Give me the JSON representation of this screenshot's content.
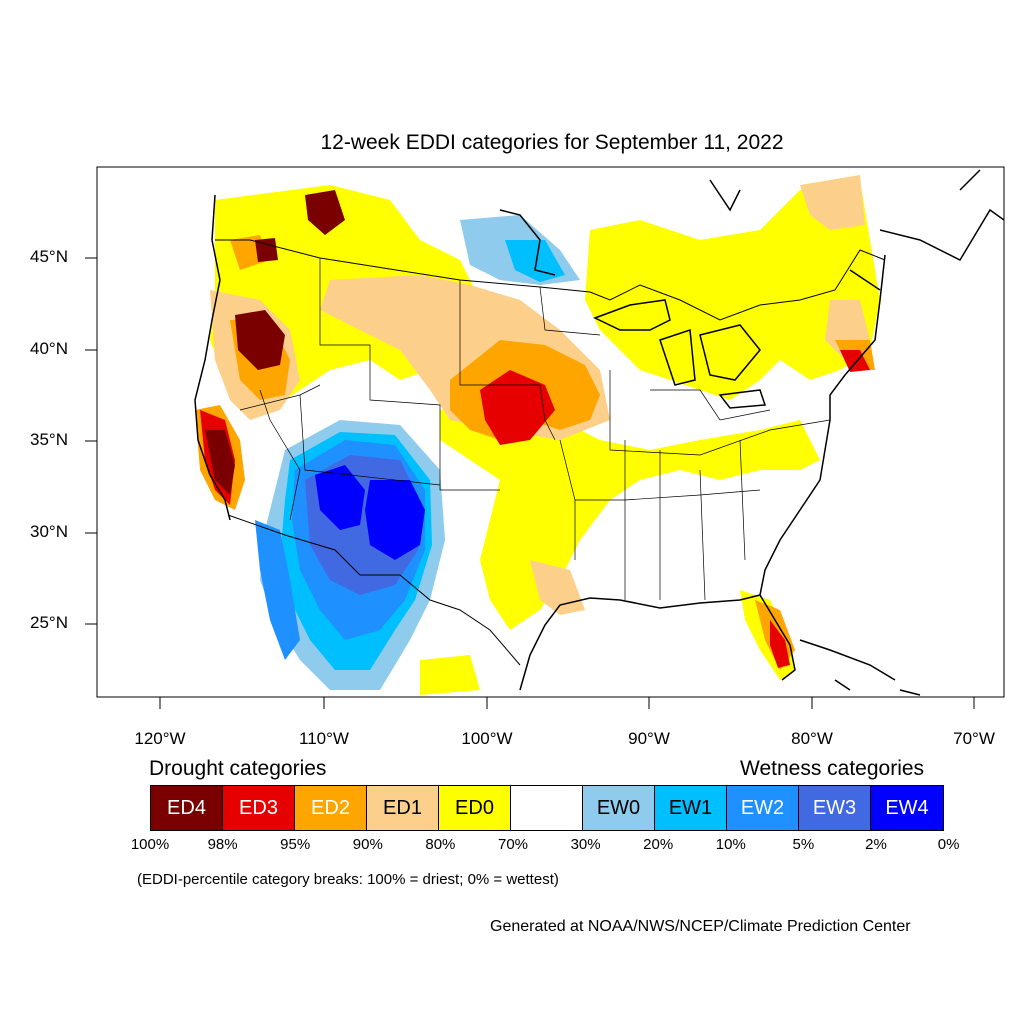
{
  "title": "12-week EDDI categories for September 11, 2022",
  "lat_labels": [
    "45°N",
    "40°N",
    "35°N",
    "30°N",
    "25°N"
  ],
  "lon_labels": [
    "120°W",
    "110°W",
    "100°W",
    "90°W",
    "80°W",
    "70°W"
  ],
  "legend": {
    "drought_heading": "Drought categories",
    "wetness_heading": "Wetness categories",
    "categories": [
      {
        "label": "ED4",
        "color": "#7a0000",
        "text_color": "#ffffff"
      },
      {
        "label": "ED3",
        "color": "#e60000",
        "text_color": "#ffffff"
      },
      {
        "label": "ED2",
        "color": "#ffa500",
        "text_color": "#ffffff"
      },
      {
        "label": "ED1",
        "color": "#fcd08a",
        "text_color": "#000000"
      },
      {
        "label": "ED0",
        "color": "#ffff00",
        "text_color": "#000000"
      },
      {
        "label": "",
        "color": "#ffffff",
        "text_color": "#000000"
      },
      {
        "label": "EW0",
        "color": "#8ecbec",
        "text_color": "#000000"
      },
      {
        "label": "EW1",
        "color": "#00bfff",
        "text_color": "#000000"
      },
      {
        "label": "EW2",
        "color": "#1e90ff",
        "text_color": "#ffffff"
      },
      {
        "label": "EW3",
        "color": "#4169e1",
        "text_color": "#ffffff"
      },
      {
        "label": "EW4",
        "color": "#0000ff",
        "text_color": "#ffffff"
      }
    ],
    "breaks": [
      "100%",
      "98%",
      "95%",
      "90%",
      "80%",
      "70%",
      "30%",
      "20%",
      "10%",
      "5%",
      "2%",
      "0%"
    ]
  },
  "note": "(EDDI-percentile category breaks: 100% = driest; 0% = wettest)",
  "credit": "Generated at NOAA/NWS/NCEP/Climate Prediction Center"
}
